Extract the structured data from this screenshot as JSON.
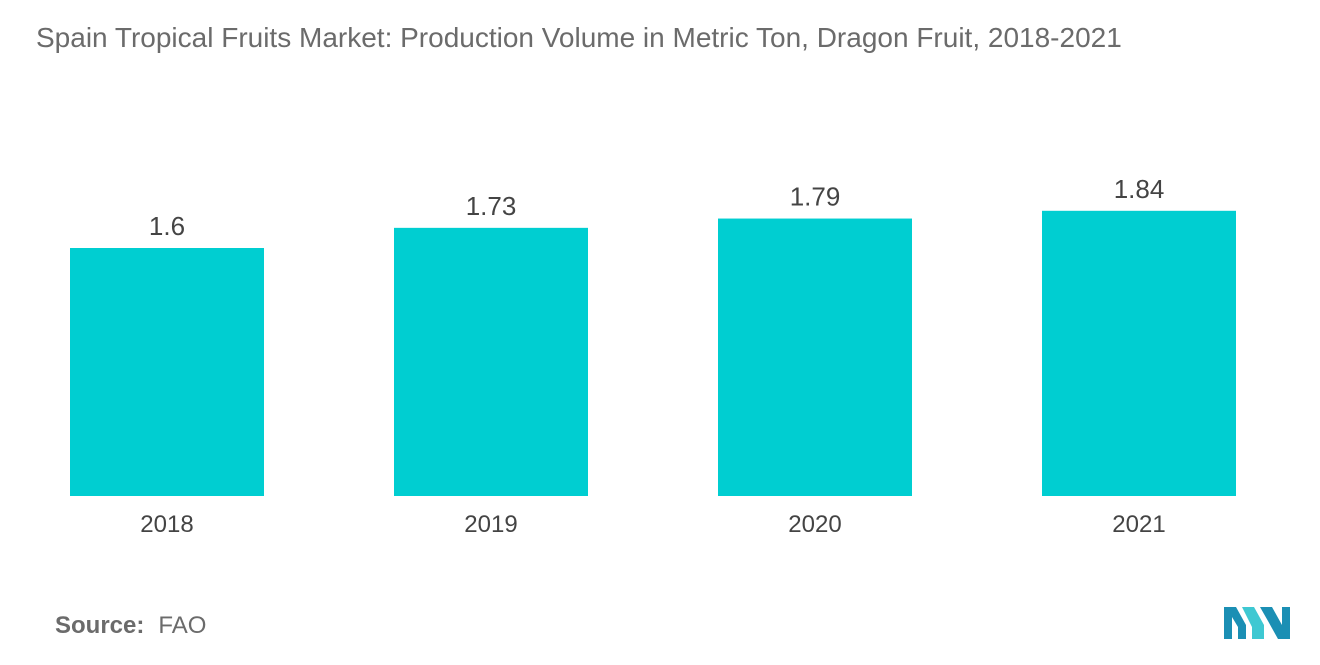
{
  "chart_data": {
    "type": "bar",
    "title": "Spain Tropical Fruits Market: Production Volume in Metric Ton, Dragon Fruit, 2018-2021",
    "categories": [
      "2018",
      "2019",
      "2020",
      "2021"
    ],
    "values": [
      1.6,
      1.73,
      1.79,
      1.84
    ],
    "data_labels": [
      "1.6",
      "1.73",
      "1.79",
      "1.84"
    ],
    "xlabel": "",
    "ylabel": "",
    "grid": false,
    "legend": "none",
    "bar_color": "#00ced1"
  },
  "source": {
    "label": "Source:",
    "value": "FAO"
  },
  "logo": {
    "icon": "mordor-intelligence-logo-icon",
    "colors": [
      "#1b8fb4",
      "#3ec8d2"
    ]
  }
}
